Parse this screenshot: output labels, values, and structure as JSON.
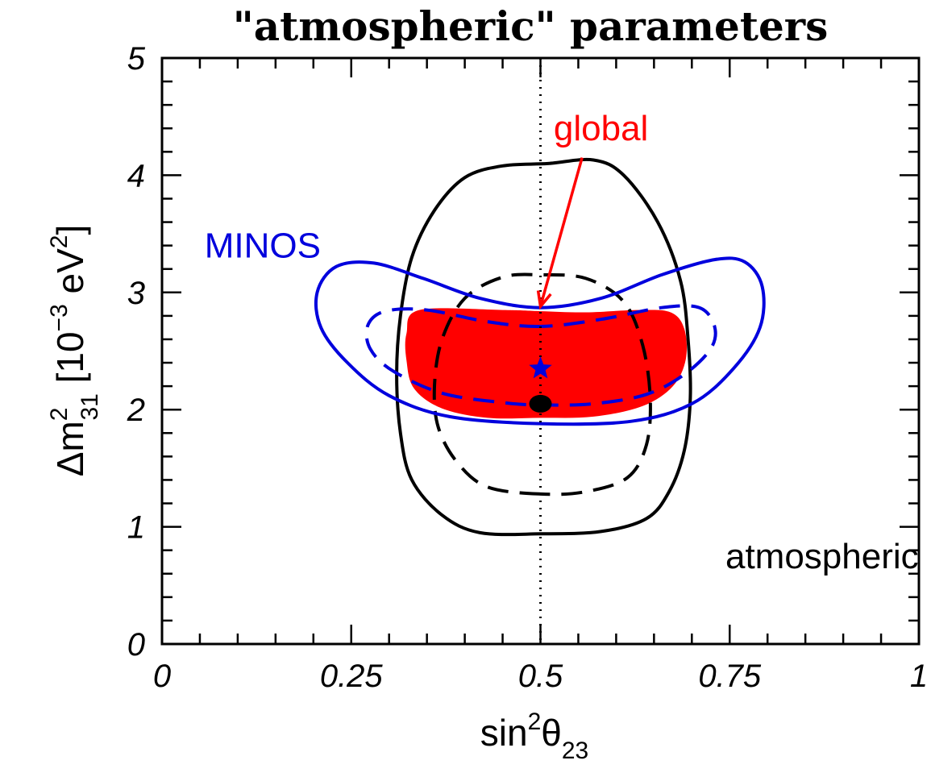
{
  "chart_data": {
    "type": "contour",
    "title": "\"atmospheric\" parameters",
    "xlabel": {
      "base": "sin",
      "sup": "2",
      "symbol": "θ",
      "sub": "23"
    },
    "ylabel": {
      "prefix": "Δm",
      "sup": "2",
      "sub": "31",
      "bracket_open": " [10",
      "exp": "−3",
      "unit": " eV",
      "unit_sup": "2",
      "bracket_close": "]"
    },
    "xlim": [
      0,
      1
    ],
    "ylim": [
      0,
      5
    ],
    "x_ticks": [
      0,
      0.25,
      0.5,
      0.75,
      1
    ],
    "x_tick_labels": [
      "0",
      "0.25",
      "0.5",
      "0.75",
      "1"
    ],
    "y_ticks": [
      0,
      1,
      2,
      3,
      4,
      5
    ],
    "y_tick_labels": [
      "0",
      "1",
      "2",
      "3",
      "4",
      "5"
    ],
    "grid": false,
    "reference_line": {
      "x": 0.5,
      "style": "dotted",
      "color": "#000000"
    },
    "colors": {
      "atmospheric": "#000000",
      "minos": "#0000dd",
      "global": "#ff0000"
    },
    "series": [
      {
        "name": "atmospheric",
        "label": "atmospheric",
        "color": "#000000",
        "style": "solid",
        "points": [
          [
            0.5,
            0.94
          ],
          [
            0.42,
            0.95
          ],
          [
            0.37,
            1.1
          ],
          [
            0.33,
            1.4
          ],
          [
            0.315,
            1.8
          ],
          [
            0.31,
            2.3
          ],
          [
            0.315,
            2.8
          ],
          [
            0.33,
            3.3
          ],
          [
            0.36,
            3.7
          ],
          [
            0.4,
            3.98
          ],
          [
            0.45,
            4.08
          ],
          [
            0.51,
            4.1
          ],
          [
            0.57,
            4.13
          ],
          [
            0.61,
            4.0
          ],
          [
            0.655,
            3.6
          ],
          [
            0.685,
            3.1
          ],
          [
            0.695,
            2.6
          ],
          [
            0.698,
            2.1
          ],
          [
            0.69,
            1.65
          ],
          [
            0.67,
            1.3
          ],
          [
            0.64,
            1.07
          ],
          [
            0.58,
            0.96
          ]
        ]
      },
      {
        "name": "atmospheric",
        "color": "#000000",
        "style": "dashed",
        "points": [
          [
            0.5,
            1.28
          ],
          [
            0.43,
            1.34
          ],
          [
            0.39,
            1.55
          ],
          [
            0.365,
            1.85
          ],
          [
            0.36,
            2.2
          ],
          [
            0.37,
            2.6
          ],
          [
            0.4,
            2.95
          ],
          [
            0.45,
            3.13
          ],
          [
            0.5,
            3.15
          ],
          [
            0.56,
            3.12
          ],
          [
            0.61,
            2.92
          ],
          [
            0.635,
            2.55
          ],
          [
            0.645,
            2.1
          ],
          [
            0.64,
            1.7
          ],
          [
            0.615,
            1.42
          ],
          [
            0.56,
            1.3
          ]
        ]
      },
      {
        "name": "MINOS",
        "label": "MINOS",
        "color": "#0000dd",
        "style": "solid",
        "points": [
          [
            0.5,
            2.87
          ],
          [
            0.42,
            2.95
          ],
          [
            0.345,
            3.12
          ],
          [
            0.28,
            3.25
          ],
          [
            0.23,
            3.22
          ],
          [
            0.205,
            3.0
          ],
          [
            0.21,
            2.7
          ],
          [
            0.245,
            2.4
          ],
          [
            0.3,
            2.12
          ],
          [
            0.38,
            1.94
          ],
          [
            0.5,
            1.88
          ],
          [
            0.62,
            1.9
          ],
          [
            0.7,
            2.05
          ],
          [
            0.755,
            2.35
          ],
          [
            0.79,
            2.7
          ],
          [
            0.793,
            3.05
          ],
          [
            0.77,
            3.26
          ],
          [
            0.73,
            3.28
          ],
          [
            0.66,
            3.15
          ],
          [
            0.58,
            2.95
          ]
        ]
      },
      {
        "name": "MINOS",
        "color": "#0000dd",
        "style": "dashed",
        "points": [
          [
            0.5,
            2.71
          ],
          [
            0.43,
            2.75
          ],
          [
            0.35,
            2.85
          ],
          [
            0.295,
            2.84
          ],
          [
            0.272,
            2.72
          ],
          [
            0.275,
            2.52
          ],
          [
            0.305,
            2.33
          ],
          [
            0.37,
            2.14
          ],
          [
            0.45,
            2.06
          ],
          [
            0.5,
            2.04
          ],
          [
            0.57,
            2.05
          ],
          [
            0.64,
            2.13
          ],
          [
            0.69,
            2.3
          ],
          [
            0.725,
            2.52
          ],
          [
            0.73,
            2.71
          ],
          [
            0.71,
            2.87
          ],
          [
            0.66,
            2.87
          ],
          [
            0.58,
            2.77
          ]
        ]
      },
      {
        "name": "global",
        "label": "global",
        "color": "#ff0000",
        "style": "filled",
        "points": [
          [
            0.34,
            2.85
          ],
          [
            0.45,
            2.85
          ],
          [
            0.5,
            2.84
          ],
          [
            0.56,
            2.83
          ],
          [
            0.63,
            2.85
          ],
          [
            0.672,
            2.83
          ],
          [
            0.69,
            2.69
          ],
          [
            0.692,
            2.43
          ],
          [
            0.675,
            2.2
          ],
          [
            0.635,
            2.03
          ],
          [
            0.57,
            1.94
          ],
          [
            0.5,
            1.93
          ],
          [
            0.43,
            1.93
          ],
          [
            0.37,
            2.01
          ],
          [
            0.333,
            2.18
          ],
          [
            0.323,
            2.42
          ],
          [
            0.323,
            2.65
          ]
        ]
      }
    ],
    "best_fit": [
      {
        "name": "MINOS",
        "marker": "star",
        "x": 0.5,
        "y": 2.35,
        "color": "#0000dd"
      },
      {
        "name": "atmospheric",
        "marker": "circle",
        "x": 0.5,
        "y": 2.05,
        "color": "#000000"
      }
    ],
    "annotations": [
      {
        "text": "global",
        "color": "#ff0000",
        "x": 0.58,
        "y": 4.4,
        "arrow_from": [
          0.555,
          4.15
        ],
        "arrow_to": [
          0.5,
          2.88
        ]
      },
      {
        "text": "MINOS",
        "color": "#0000dd",
        "x": 0.133,
        "y": 3.4
      },
      {
        "text": "atmospheric",
        "color": "#000000",
        "x": 0.872,
        "y": 0.75
      }
    ]
  }
}
